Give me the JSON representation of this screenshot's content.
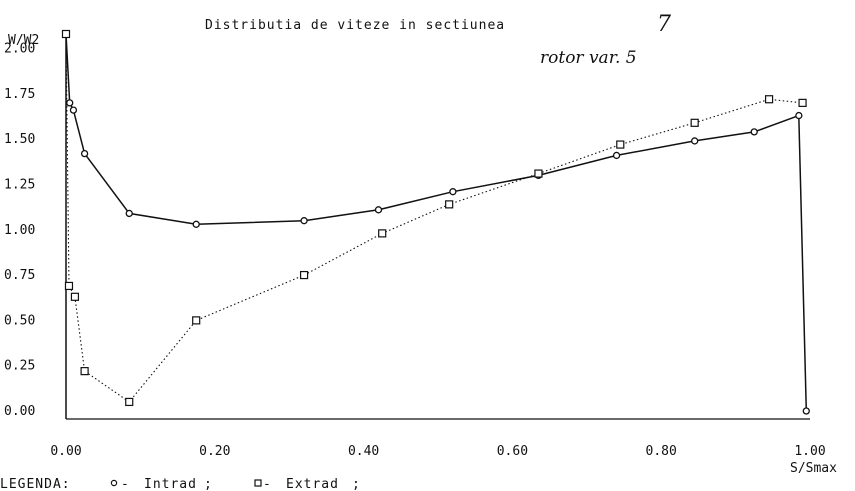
{
  "chart_data": {
    "type": "line",
    "title": "Distributia de viteze in sectiunea",
    "section_number": "7",
    "subtitle": "rotor var. 5",
    "ylabel": "W/W2",
    "xlabel": "S/Smax",
    "xlim": [
      0.0,
      1.0
    ],
    "ylim": [
      0.0,
      2.1
    ],
    "x_ticks": [
      "0.00",
      "0.20",
      "0.40",
      "0.60",
      "0.80",
      "1.00"
    ],
    "x_tick_values": [
      0.0,
      0.2,
      0.4,
      0.6,
      0.8,
      1.0
    ],
    "y_ticks": [
      "0.00",
      "0.25",
      "0.50",
      "0.75",
      "1.00",
      "1.25",
      "1.50",
      "1.75",
      "2.00"
    ],
    "y_tick_values": [
      0.0,
      0.25,
      0.5,
      0.75,
      1.0,
      1.25,
      1.5,
      1.75,
      2.0
    ],
    "legend_label": "LEGENDA:",
    "grid": false,
    "series": [
      {
        "name": "Intrad",
        "marker": "circle",
        "line_style": "solid",
        "x": [
          0.0,
          0.005,
          0.01,
          0.025,
          0.085,
          0.175,
          0.32,
          0.42,
          0.52,
          0.635,
          0.74,
          0.845,
          0.925,
          0.985,
          0.995
        ],
        "y": [
          2.08,
          1.7,
          1.66,
          1.42,
          1.09,
          1.03,
          1.05,
          1.11,
          1.21,
          1.3,
          1.41,
          1.49,
          1.54,
          1.63,
          0.0
        ]
      },
      {
        "name": "Extrad",
        "marker": "square",
        "line_style": "dotted",
        "x": [
          0.0,
          0.004,
          0.012,
          0.025,
          0.085,
          0.175,
          0.32,
          0.425,
          0.515,
          0.635,
          0.745,
          0.845,
          0.945,
          0.99
        ],
        "y": [
          2.08,
          0.69,
          0.63,
          0.22,
          0.05,
          0.5,
          0.75,
          0.98,
          1.14,
          1.31,
          1.47,
          1.59,
          1.72,
          1.7
        ]
      }
    ]
  }
}
